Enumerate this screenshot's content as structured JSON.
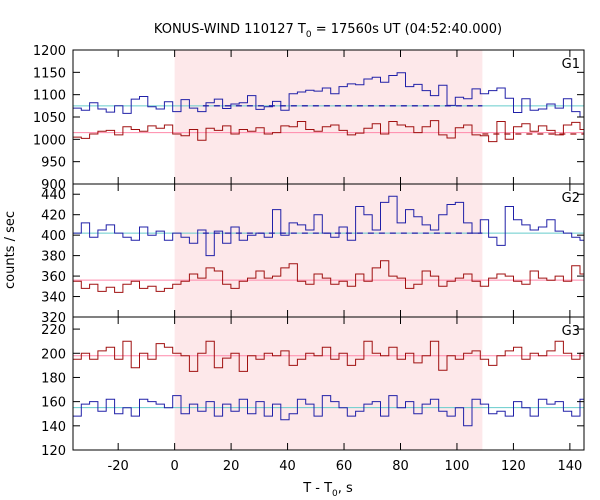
{
  "title": {
    "main": "KONUS-WIND 110127 T",
    "sub": "0",
    "tail": " = 17560s UT (04:52:40.000)"
  },
  "xlabel": {
    "main": "T - T",
    "sub": "0",
    "tail": ", s"
  },
  "ylabel": "counts / sec",
  "chart_data": [
    {
      "type": "line",
      "panel": "G1",
      "xlim": [
        -36,
        145
      ],
      "ylim": [
        900,
        1200
      ],
      "yticks": [
        900,
        950,
        1000,
        1050,
        1100,
        1150,
        1200
      ],
      "xticks": [
        -20,
        0,
        20,
        40,
        60,
        80,
        100,
        120,
        140
      ],
      "highlight_interval": [
        0,
        109
      ],
      "colors": {
        "high": "#2020a8",
        "low": "#a01010",
        "high_fit": "#66cccc",
        "low_fit": "#ff88aa",
        "highlight": "#fde8ea"
      },
      "series": [
        {
          "role": "high",
          "start": -36,
          "step": 2.944,
          "values": [
            1070,
            1065,
            1082,
            1068,
            1061,
            1075,
            1058,
            1090,
            1096,
            1073,
            1068,
            1084,
            1062,
            1089,
            1070,
            1062,
            1082,
            1090,
            1069,
            1079,
            1082,
            1098,
            1067,
            1073,
            1085,
            1065,
            1102,
            1106,
            1110,
            1108,
            1115,
            1102,
            1118,
            1124,
            1122,
            1135,
            1139,
            1128,
            1143,
            1149,
            1118,
            1123,
            1109,
            1098,
            1121,
            1076,
            1094,
            1091,
            1113,
            1102,
            1109,
            1115,
            1092,
            1060,
            1091,
            1065,
            1068,
            1079,
            1070,
            1091,
            1062,
            1050,
            1069,
            1097,
            1082,
            1048,
            1079,
            1059,
            1087,
            1110,
            1056,
            1068,
            1062,
            1084,
            1050,
            1068,
            1070,
            1059,
            1066,
            1063,
            1070,
            1052,
            1073,
            1066,
            1058,
            1081,
            1055,
            1070,
            1062,
            1068,
            1078,
            1080,
            1064,
            1071,
            1100,
            1060,
            1077,
            1070,
            1082,
            1084,
            1065,
            1089,
            1070,
            1062,
            1079,
            1090,
            1069,
            1074,
            1082
          ]
        },
        {
          "role": "low",
          "start": -36,
          "step": 2.944,
          "values": [
            1005,
            1002,
            1012,
            1018,
            1020,
            1010,
            1028,
            1022,
            1018,
            1030,
            1025,
            1032,
            1012,
            1008,
            1022,
            998,
            1025,
            1020,
            1030,
            1012,
            1022,
            1018,
            1026,
            1012,
            1015,
            1030,
            1028,
            1040,
            1022,
            1018,
            1028,
            1032,
            1020,
            1010,
            1014,
            1025,
            1035,
            1012,
            1040,
            1032,
            1028,
            1015,
            1028,
            1042,
            1010,
            1003,
            1026,
            1032,
            1010,
            1008,
            995,
            1040,
            1000,
            1028,
            1035,
            1018,
            1030,
            1020,
            1010,
            1032,
            1038,
            1022,
            1012,
            1032,
            1060,
            1027,
            1045,
            1019,
            1035,
            1022,
            1040,
            1028,
            1065,
            1052,
            1038,
            1025,
            1022,
            1048,
            1030,
            1032,
            1014,
            1025,
            1030,
            1016,
            1027,
            1021,
            1040,
            1013,
            1034,
            1028,
            1012,
            1026,
            1035,
            1020,
            1030,
            1028,
            1022,
            1018,
            1025,
            1032,
            1028,
            1020,
            1014,
            1030
          ]
        }
      ],
      "fits": [
        {
          "role": "high_fit",
          "value": 1075
        },
        {
          "role": "low_fit",
          "value": 1015
        }
      ],
      "dashed": [
        {
          "role": "high",
          "value": 1075,
          "x": [
            10,
            109
          ]
        },
        {
          "role": "low",
          "value": 1012,
          "x": [
            109,
            145
          ]
        }
      ]
    },
    {
      "type": "line",
      "panel": "G2",
      "xlim": [
        -36,
        145
      ],
      "ylim": [
        320,
        450
      ],
      "yticks": [
        320,
        340,
        360,
        380,
        400,
        420,
        440
      ],
      "xticks": [
        -20,
        0,
        20,
        40,
        60,
        80,
        100,
        120,
        140
      ],
      "highlight_interval": [
        0,
        109
      ],
      "colors": {
        "high": "#2020a8",
        "low": "#a01010",
        "high_fit": "#66cccc",
        "low_fit": "#ff88aa",
        "highlight": "#fde8ea"
      },
      "series": [
        {
          "role": "high",
          "start": -36,
          "step": 2.944,
          "values": [
            402,
            412,
            398,
            405,
            410,
            402,
            398,
            395,
            408,
            400,
            404,
            395,
            402,
            398,
            392,
            405,
            380,
            404,
            392,
            408,
            395,
            400,
            402,
            398,
            425,
            400,
            412,
            410,
            405,
            420,
            402,
            398,
            408,
            395,
            428,
            420,
            405,
            432,
            438,
            412,
            425,
            418,
            410,
            405,
            420,
            430,
            432,
            412,
            402,
            415,
            398,
            390,
            428,
            415,
            410,
            405,
            408,
            415,
            404,
            402,
            398,
            395,
            412,
            408,
            418,
            405,
            398,
            402,
            410,
            400,
            404,
            412,
            403,
            399,
            398,
            408,
            412,
            398,
            443,
            395,
            408,
            402,
            400,
            405,
            398,
            395,
            412,
            402,
            398,
            384,
            405,
            398,
            386,
            410,
            402,
            398,
            395,
            392,
            398,
            400,
            405,
            402,
            408,
            403,
            398,
            412,
            396,
            402,
            425
          ]
        },
        {
          "role": "low",
          "start": -36,
          "step": 2.944,
          "values": [
            355,
            348,
            352,
            345,
            349,
            344,
            352,
            355,
            348,
            350,
            345,
            348,
            352,
            355,
            362,
            358,
            368,
            365,
            352,
            348,
            355,
            358,
            365,
            358,
            360,
            368,
            372,
            355,
            352,
            362,
            358,
            352,
            355,
            350,
            362,
            355,
            368,
            375,
            360,
            358,
            348,
            352,
            365,
            360,
            350,
            355,
            358,
            362,
            355,
            350,
            358,
            362,
            360,
            355,
            352,
            365,
            358,
            356,
            360,
            355,
            370,
            362,
            358,
            360,
            352,
            358,
            362,
            352,
            355,
            348,
            360,
            365,
            368,
            352,
            358,
            362,
            348,
            352,
            358,
            362,
            365,
            352,
            350,
            345,
            352,
            355,
            360,
            352,
            358,
            362,
            355,
            350,
            358,
            362,
            352,
            355,
            358,
            352,
            362,
            358,
            352,
            368,
            362,
            358,
            360,
            370,
            365,
            358,
            368
          ]
        }
      ],
      "fits": [
        {
          "role": "high_fit",
          "value": 402
        },
        {
          "role": "low_fit",
          "value": 356
        }
      ],
      "dashed": [
        {
          "role": "high",
          "value": 402,
          "x": [
            10,
            109
          ]
        }
      ]
    },
    {
      "type": "line",
      "panel": "G3",
      "xlim": [
        -36,
        145
      ],
      "ylim": [
        120,
        230
      ],
      "yticks": [
        120,
        140,
        160,
        180,
        200,
        220
      ],
      "xticks": [
        -20,
        0,
        20,
        40,
        60,
        80,
        100,
        120,
        140
      ],
      "highlight_interval": [
        0,
        109
      ],
      "colors": {
        "high": "#2020a8",
        "low": "#a01010",
        "high_fit": "#66cccc",
        "low_fit": "#ff88aa",
        "highlight": "#fde8ea"
      },
      "series": [
        {
          "role": "high",
          "start": -36,
          "step": 2.944,
          "values": [
            148,
            158,
            160,
            152,
            162,
            150,
            155,
            148,
            162,
            160,
            158,
            155,
            165,
            150,
            158,
            152,
            160,
            148,
            158,
            152,
            162,
            150,
            160,
            148,
            158,
            145,
            150,
            162,
            158,
            148,
            165,
            160,
            155,
            148,
            152,
            158,
            160,
            148,
            165,
            155,
            160,
            150,
            158,
            162,
            152,
            148,
            155,
            140,
            162,
            158,
            150,
            152,
            148,
            160,
            155,
            148,
            162,
            158,
            160,
            152,
            148,
            162,
            155,
            150,
            148,
            160,
            155,
            148,
            150,
            162,
            152,
            158,
            168,
            150,
            160,
            152,
            148,
            160,
            155,
            158,
            160,
            152,
            148,
            162,
            158,
            155,
            148,
            160,
            152,
            150,
            158,
            155,
            148,
            152,
            160,
            158,
            155,
            148,
            162,
            158,
            150,
            145,
            158,
            162,
            150,
            155,
            148,
            162,
            158
          ]
        },
        {
          "role": "low",
          "start": -36,
          "step": 2.944,
          "values": [
            195,
            200,
            195,
            202,
            205,
            195,
            210,
            188,
            200,
            195,
            208,
            205,
            200,
            198,
            185,
            200,
            210,
            188,
            196,
            200,
            185,
            198,
            195,
            200,
            198,
            202,
            190,
            195,
            200,
            198,
            205,
            195,
            200,
            190,
            195,
            210,
            200,
            198,
            205,
            195,
            200,
            192,
            198,
            210,
            186,
            198,
            195,
            200,
            202,
            195,
            190,
            198,
            202,
            205,
            195,
            200,
            198,
            202,
            210,
            200,
            195,
            200,
            198,
            205,
            210,
            195,
            200,
            185,
            198,
            195,
            205,
            200,
            212,
            200,
            205,
            198,
            192,
            208,
            210,
            205,
            195,
            200,
            210,
            202,
            200,
            190,
            198,
            205,
            195,
            200,
            192,
            198,
            195,
            188,
            200,
            195,
            198,
            200,
            195,
            190,
            200,
            185,
            202,
            198,
            195,
            200,
            190,
            198,
            200
          ]
        }
      ],
      "fits": [
        {
          "role": "high_fit",
          "value": 155
        },
        {
          "role": "low_fit",
          "value": 198
        }
      ],
      "dashed": []
    }
  ]
}
